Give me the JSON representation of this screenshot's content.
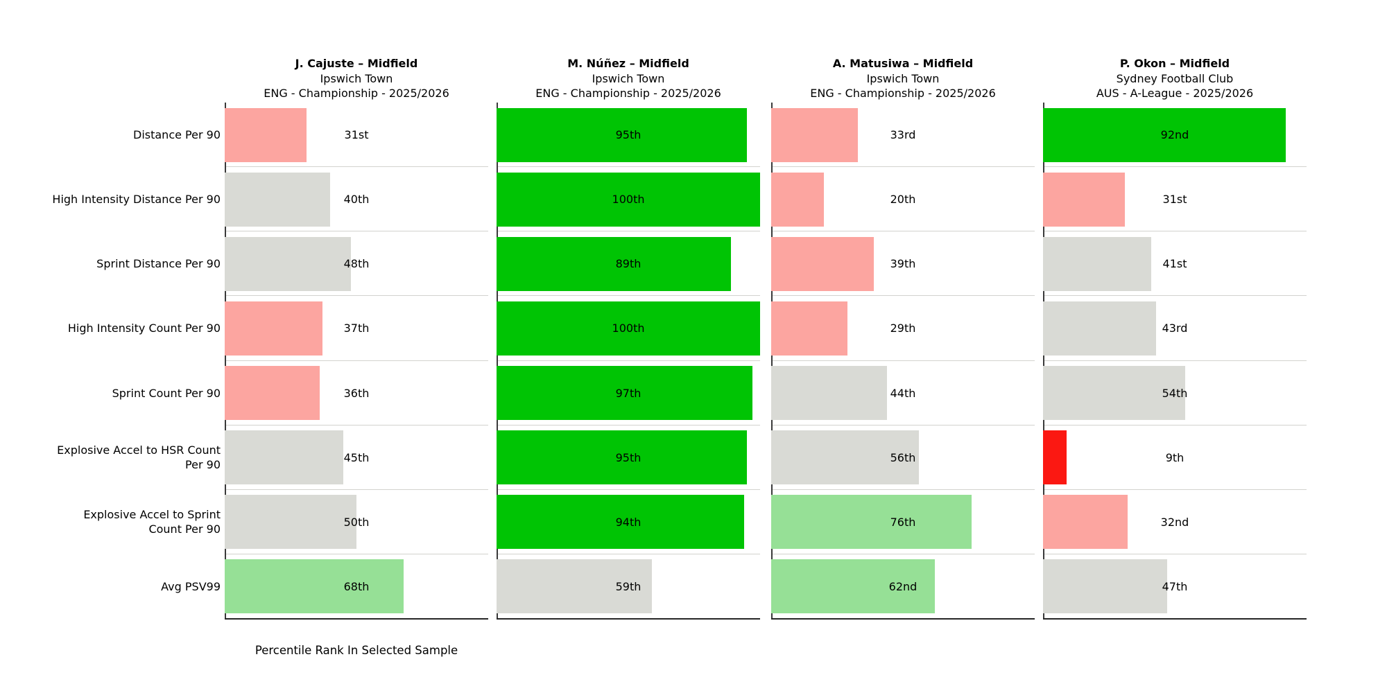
{
  "colors": {
    "green": "#00c404",
    "lightgreen": "#96e096",
    "gray": "#d9dad5",
    "pink": "#fca5a0",
    "red": "#fb1812"
  },
  "chart_data": {
    "type": "bar",
    "orientation": "horizontal",
    "xlabel": "Percentile Rank In Selected Sample",
    "xlim": [
      0,
      100
    ],
    "grid": false,
    "metrics": [
      "Distance Per 90",
      "High Intensity Distance Per 90",
      "Sprint Distance Per 90",
      "High Intensity Count Per 90",
      "Sprint Count Per 90",
      "Explosive Accel to HSR Count\nPer 90",
      "Explosive Accel to Sprint\nCount Per 90",
      "Avg PSV99"
    ],
    "players": [
      {
        "name": "J. Cajuste – Midfield",
        "team": "Ipswich Town",
        "competition": "ENG - Championship - 2025/2026",
        "values": [
          31,
          40,
          48,
          37,
          36,
          45,
          50,
          68
        ],
        "value_labels": [
          "31st",
          "40th",
          "48th",
          "37th",
          "36th",
          "45th",
          "50th",
          "68th"
        ],
        "color_keys": [
          "pink",
          "gray",
          "gray",
          "pink",
          "pink",
          "gray",
          "gray",
          "lightgreen"
        ]
      },
      {
        "name": "M. Núñez – Midfield",
        "team": "Ipswich Town",
        "competition": "ENG - Championship - 2025/2026",
        "values": [
          95,
          100,
          89,
          100,
          97,
          95,
          94,
          59
        ],
        "value_labels": [
          "95th",
          "100th",
          "89th",
          "100th",
          "97th",
          "95th",
          "94th",
          "59th"
        ],
        "color_keys": [
          "green",
          "green",
          "green",
          "green",
          "green",
          "green",
          "green",
          "gray"
        ]
      },
      {
        "name": "A. Matusiwa – Midfield",
        "team": "Ipswich Town",
        "competition": "ENG - Championship - 2025/2026",
        "values": [
          33,
          20,
          39,
          29,
          44,
          56,
          76,
          62
        ],
        "value_labels": [
          "33rd",
          "20th",
          "39th",
          "29th",
          "44th",
          "56th",
          "76th",
          "62nd"
        ],
        "color_keys": [
          "pink",
          "pink",
          "pink",
          "pink",
          "gray",
          "gray",
          "lightgreen",
          "lightgreen"
        ]
      },
      {
        "name": "P. Okon – Midfield",
        "team": "Sydney Football Club",
        "competition": "AUS - A-League - 2025/2026",
        "values": [
          92,
          31,
          41,
          43,
          54,
          9,
          32,
          47
        ],
        "value_labels": [
          "92nd",
          "31st",
          "41st",
          "43rd",
          "54th",
          "9th",
          "32nd",
          "47th"
        ],
        "color_keys": [
          "green",
          "pink",
          "gray",
          "gray",
          "gray",
          "red",
          "pink",
          "gray"
        ]
      }
    ]
  }
}
